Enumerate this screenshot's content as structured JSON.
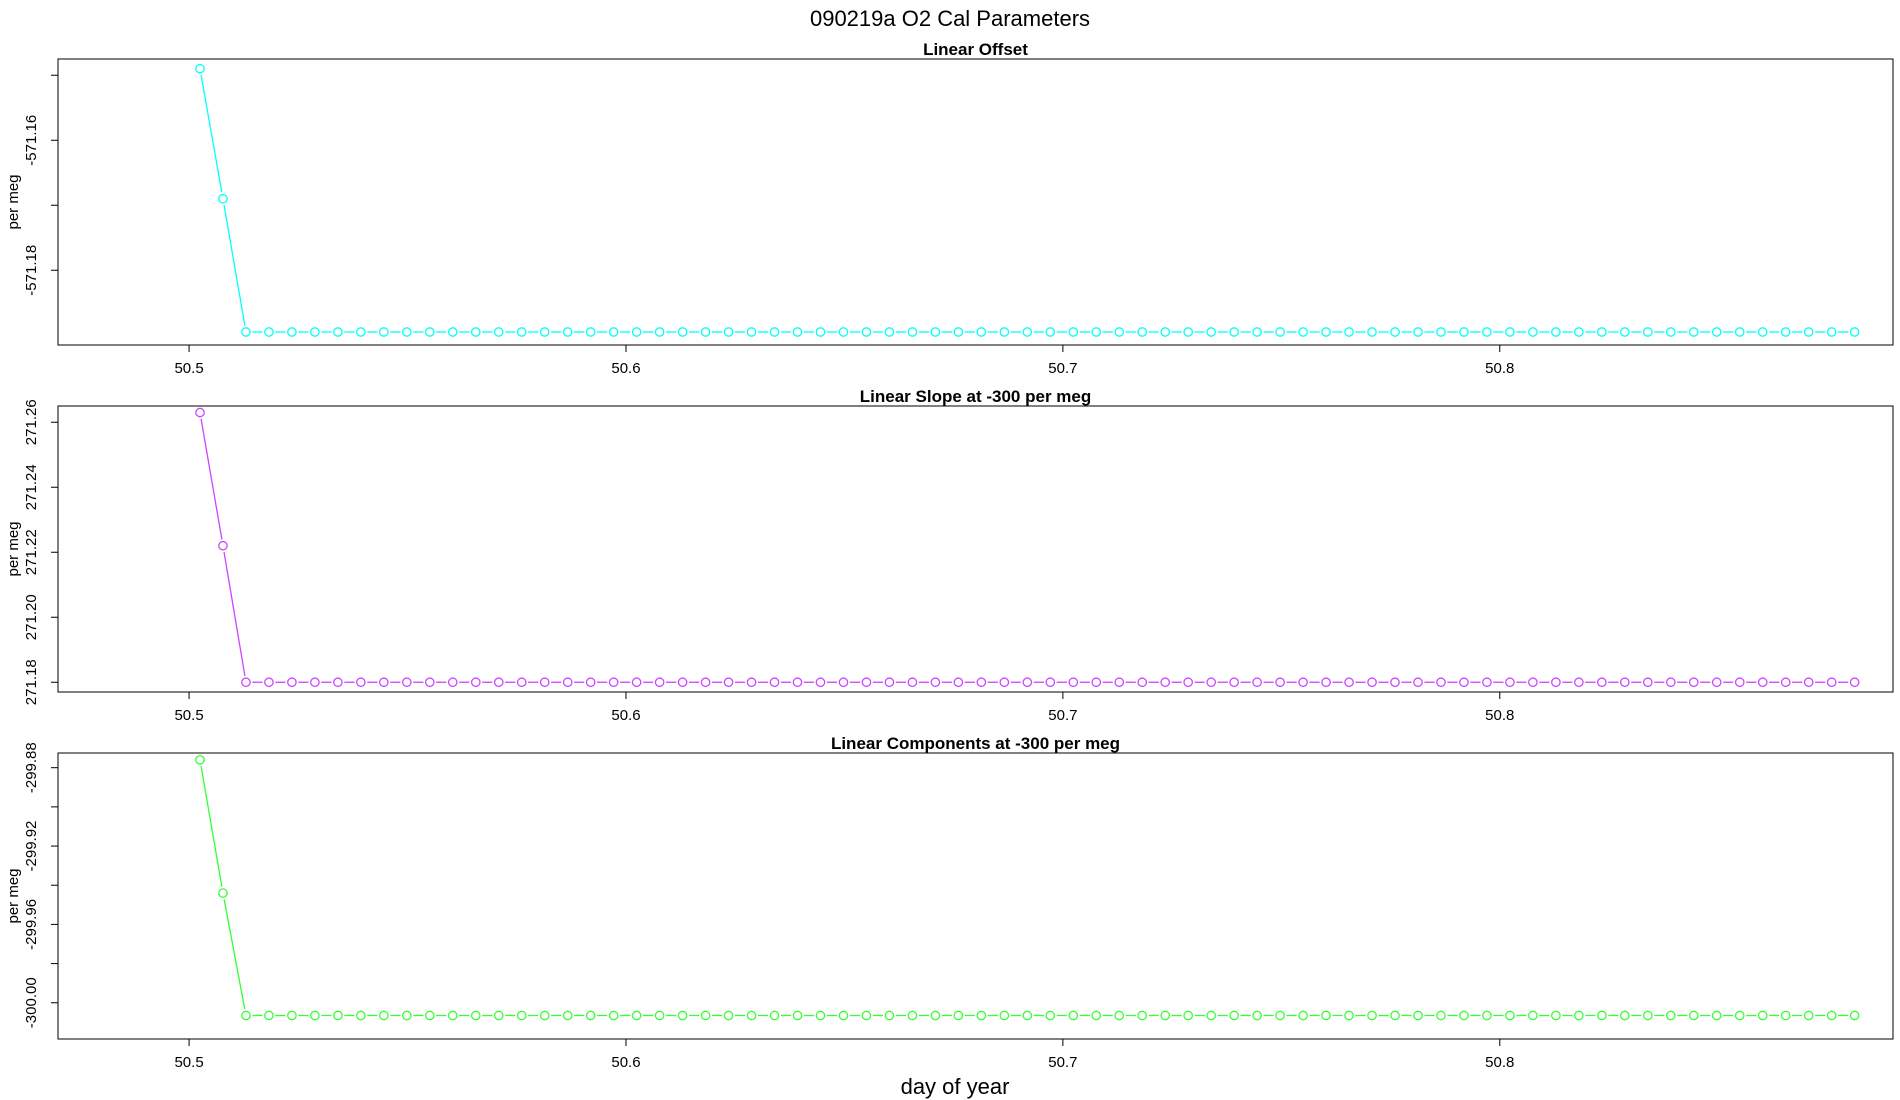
{
  "figure": {
    "title": "090219a   O2 Cal Parameters",
    "xlabel": "day of year"
  },
  "chart_data": [
    {
      "type": "line",
      "title": "Linear Offset",
      "xlabel": "day of year",
      "ylabel": "per meg",
      "color": "#00ffff",
      "xlim": [
        50.47,
        50.89
      ],
      "ylim": [
        -571.1915,
        -571.1475
      ],
      "xticks": [
        50.5,
        50.6,
        50.7,
        50.8
      ],
      "xtick_labels": [
        "50.5",
        "50.6",
        "50.7",
        "50.8"
      ],
      "yticks": [
        -571.18,
        -571.17,
        -571.16,
        -571.15
      ],
      "ytick_labels": [
        "-571.18",
        "",
        "-571.16",
        ""
      ],
      "x_start": 50.5025,
      "x_step": 0.00526,
      "n_points": 73,
      "head_values": [
        -571.149,
        -571.169
      ],
      "flat_value": -571.1895
    },
    {
      "type": "line",
      "title": "Linear Slope at -300 per meg",
      "xlabel": "day of year",
      "ylabel": "per meg",
      "color": "#cc44ff",
      "xlim": [
        50.47,
        50.89
      ],
      "ylim": [
        271.177,
        271.265
      ],
      "xticks": [
        50.5,
        50.6,
        50.7,
        50.8
      ],
      "xtick_labels": [
        "50.5",
        "50.6",
        "50.7",
        "50.8"
      ],
      "yticks": [
        271.18,
        271.2,
        271.22,
        271.24,
        271.26
      ],
      "ytick_labels": [
        "271.18",
        "271.20",
        "271.22",
        "271.24",
        "271.26"
      ],
      "x_start": 50.5025,
      "x_step": 0.00526,
      "n_points": 73,
      "head_values": [
        271.263,
        271.222
      ],
      "flat_value": 271.18
    },
    {
      "type": "line",
      "title": "Linear Components at -300 per meg",
      "xlabel": "day of year",
      "ylabel": "per meg",
      "color": "#33ff33",
      "xlim": [
        50.47,
        50.89
      ],
      "ylim": [
        -300.0185,
        -299.8725
      ],
      "xticks": [
        50.5,
        50.6,
        50.7,
        50.8
      ],
      "xtick_labels": [
        "50.5",
        "50.6",
        "50.7",
        "50.8"
      ],
      "yticks": [
        -300.0,
        -299.98,
        -299.96,
        -299.94,
        -299.92,
        -299.9,
        -299.88
      ],
      "ytick_labels": [
        "-300.00",
        "",
        "-299.96",
        "",
        "-299.92",
        "",
        "-299.88"
      ],
      "x_start": 50.5025,
      "x_step": 0.00526,
      "n_points": 73,
      "head_values": [
        -299.876,
        -299.944
      ],
      "flat_value": -300.0065
    }
  ]
}
